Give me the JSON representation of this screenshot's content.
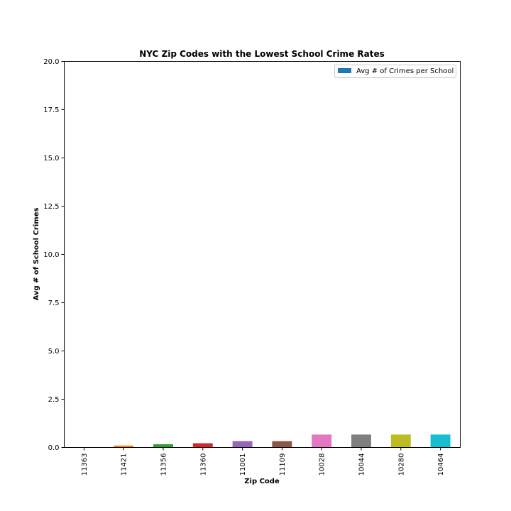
{
  "chart_data": {
    "type": "bar",
    "title": "NYC Zip Codes with the Lowest School Crime Rates",
    "xlabel": "Zip Code",
    "ylabel": "Avg # of School Crimes",
    "categories": [
      "11363",
      "11421",
      "11356",
      "11360",
      "11001",
      "11109",
      "10028",
      "10044",
      "10280",
      "10464"
    ],
    "values": [
      0.0,
      0.1,
      0.17,
      0.22,
      0.33,
      0.33,
      0.67,
      0.67,
      0.67,
      0.67
    ],
    "bar_colors": [
      "#1f77b4",
      "#ff7f0e",
      "#2ca02c",
      "#d62728",
      "#9467bd",
      "#8c564b",
      "#e377c2",
      "#7f7f7f",
      "#bcbd22",
      "#17becf"
    ],
    "ylim": [
      0,
      20
    ],
    "yticks": [
      "0.0",
      "2.5",
      "5.0",
      "7.5",
      "10.0",
      "12.5",
      "15.0",
      "17.5",
      "20.0"
    ],
    "grid": false,
    "legend": {
      "label": "Avg # of Crimes per School",
      "color": "#1f77b4",
      "placement": "top-right"
    }
  }
}
